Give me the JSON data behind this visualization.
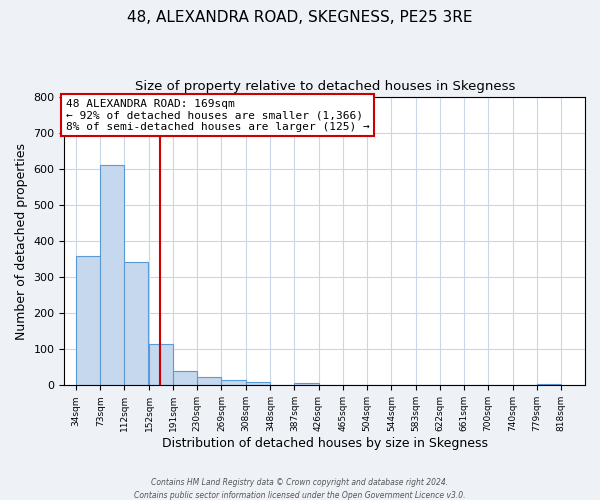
{
  "title": "48, ALEXANDRA ROAD, SKEGNESS, PE25 3RE",
  "subtitle": "Size of property relative to detached houses in Skegness",
  "xlabel": "Distribution of detached houses by size in Skegness",
  "ylabel": "Number of detached properties",
  "bar_left_edges": [
    34,
    73,
    112,
    152,
    191,
    230,
    269,
    308,
    348,
    387,
    426,
    465,
    504,
    544,
    583,
    622,
    661,
    700,
    740,
    779
  ],
  "bar_heights": [
    360,
    611,
    342,
    114,
    40,
    22,
    15,
    8,
    0,
    7,
    0,
    0,
    0,
    0,
    0,
    0,
    0,
    0,
    0,
    5
  ],
  "bin_width": 39,
  "bar_color": "#c5d8ed",
  "bar_edge_color": "#5b9bd5",
  "property_line_x": 169,
  "property_line_color": "#cc0000",
  "annotation_line1": "48 ALEXANDRA ROAD: 169sqm",
  "annotation_line2": "← 92% of detached houses are smaller (1,366)",
  "annotation_line3": "8% of semi-detached houses are larger (125) →",
  "annotation_box_color": "#ffffff",
  "annotation_box_edge_color": "#cc0000",
  "tick_labels": [
    "34sqm",
    "73sqm",
    "112sqm",
    "152sqm",
    "191sqm",
    "230sqm",
    "269sqm",
    "308sqm",
    "348sqm",
    "387sqm",
    "426sqm",
    "465sqm",
    "504sqm",
    "544sqm",
    "583sqm",
    "622sqm",
    "661sqm",
    "700sqm",
    "740sqm",
    "779sqm",
    "818sqm"
  ],
  "xlim_min": 15,
  "xlim_max": 857,
  "ylim": [
    0,
    800
  ],
  "yticks": [
    0,
    100,
    200,
    300,
    400,
    500,
    600,
    700,
    800
  ],
  "background_color": "#eef2f7",
  "plot_background_color": "#ffffff",
  "grid_color": "#c8d8e8",
  "footer_line1": "Contains HM Land Registry data © Crown copyright and database right 2024.",
  "footer_line2": "Contains public sector information licensed under the Open Government Licence v3.0."
}
